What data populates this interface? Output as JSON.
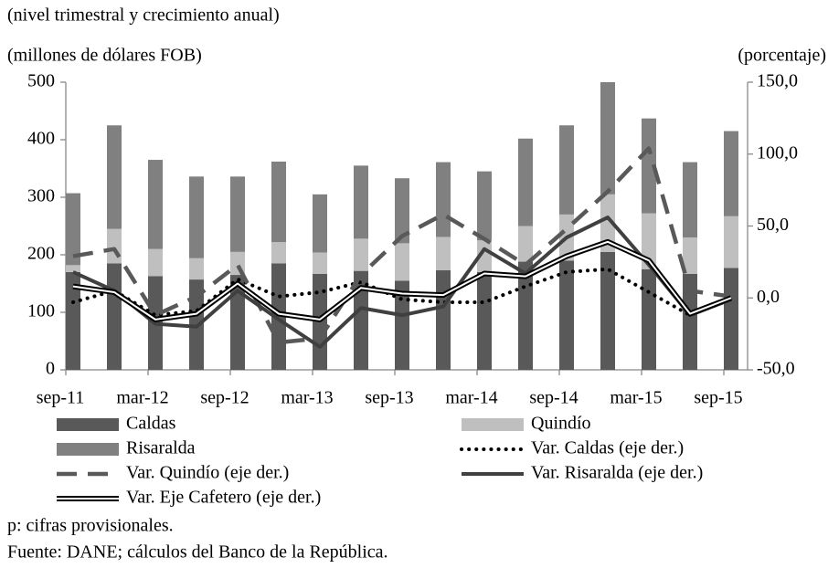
{
  "chart_data": {
    "type": "bar",
    "subtitle": "(nivel trimestral y crecimiento anual)",
    "y_label": "(millones de dólares FOB)",
    "y2_label": "(porcentaje)",
    "categories": [
      "sep-11",
      null,
      "mar-12",
      null,
      "sep-12",
      null,
      "mar-13",
      null,
      "sep-13",
      null,
      "mar-14",
      null,
      "sep-14",
      null,
      "mar-15",
      null,
      "sep-15"
    ],
    "ylim": [
      0,
      500
    ],
    "yticks": [
      0,
      100,
      200,
      300,
      400,
      500
    ],
    "y2lim": [
      -50,
      150
    ],
    "y2ticks": [
      {
        "value": -50,
        "label": "-50,0"
      },
      {
        "value": 0,
        "label": "0,0"
      },
      {
        "value": 50,
        "label": "50,0"
      },
      {
        "value": 100,
        "label": "100,0"
      },
      {
        "value": 150,
        "label": "150,0"
      }
    ],
    "series": [
      {
        "name": "Caldas",
        "type": "bar",
        "color": "#595959",
        "values": [
          170,
          185,
          163,
          157,
          165,
          185,
          167,
          172,
          155,
          173,
          170,
          188,
          190,
          205,
          175,
          167,
          177
        ]
      },
      {
        "name": "Quindío",
        "type": "bar",
        "color": "#bfbfbf",
        "values": [
          12,
          60,
          47,
          37,
          40,
          37,
          37,
          56,
          65,
          58,
          55,
          62,
          80,
          100,
          97,
          63,
          90
        ]
      },
      {
        "name": "Risaralda",
        "type": "bar",
        "color": "#808080",
        "values": [
          125,
          180,
          155,
          142,
          131,
          140,
          101,
          127,
          113,
          130,
          120,
          152,
          155,
          195,
          165,
          131,
          148
        ]
      },
      {
        "name": "Var. Caldas (eje der.)",
        "type": "line",
        "axis": "y2",
        "style": "dotted",
        "color": "#000000",
        "values": [
          -3,
          5,
          -12,
          -9,
          13,
          1,
          4,
          11,
          -1,
          -3,
          -3,
          8,
          18,
          20,
          4,
          -12,
          -1
        ]
      },
      {
        "name": "Var. Quindío (eje der.)",
        "type": "line",
        "axis": "y2",
        "style": "dashed",
        "color": "#595959",
        "values": [
          29,
          34,
          -12,
          1,
          23,
          -31,
          -28,
          16,
          43,
          58,
          41,
          23,
          48,
          74,
          104,
          5,
          1
        ]
      },
      {
        "name": "Var. Risaralda (eje der.)",
        "type": "line",
        "axis": "y2",
        "style": "solid",
        "color": "#404040",
        "values": [
          18,
          5,
          -18,
          -20,
          5,
          -15,
          -34,
          -7,
          -12,
          -6,
          34,
          17,
          42,
          56,
          23,
          -12,
          -1
        ]
      },
      {
        "name": "Var. Eje Cafetero (eje der.)",
        "type": "line",
        "axis": "y2",
        "style": "double",
        "color": "#000000",
        "values": [
          8,
          4,
          -15,
          -11,
          10,
          -11,
          -15,
          7,
          3,
          2,
          17,
          15,
          29,
          39,
          26,
          -11,
          0
        ]
      }
    ],
    "notes": [
      "p: cifras provisionales.",
      "Fuente: DANE; cálculos del Banco de la República."
    ]
  }
}
